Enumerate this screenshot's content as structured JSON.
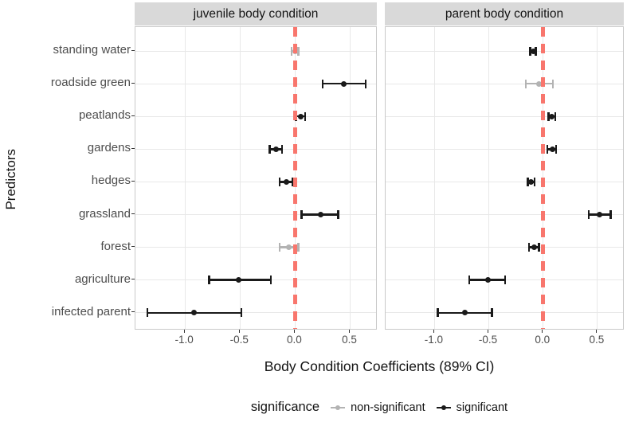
{
  "axes": {
    "x_title": "Body Condition Coefficients (89% CI)",
    "y_title": "Predictors"
  },
  "legend": {
    "title": "significance",
    "items": [
      {
        "label": "non-significant",
        "color": "#b3b3b3"
      },
      {
        "label": "significant",
        "color": "#1a1a1a"
      }
    ]
  },
  "style": {
    "strip_background": "#d9d9d9",
    "panel_border": "#c9c9c9",
    "grid_color": "#e8e8e8",
    "reference_line_color": "#f8766d"
  },
  "chart_data": {
    "type": "scatter",
    "variant": "pointrange-forest-plot",
    "orientation": "horizontal",
    "facets": [
      "juvenile body condition",
      "parent body condition"
    ],
    "categories": [
      "standing water",
      "roadside green",
      "peatlands",
      "gardens",
      "hedges",
      "grassland",
      "forest",
      "agriculture",
      "infected parent"
    ],
    "xlabel": "Body Condition Coefficients (89% CI)",
    "ylabel": "Predictors",
    "xlim": [
      -1.45,
      0.75
    ],
    "x_ticks": [
      -1.0,
      -0.5,
      0.0,
      0.5
    ],
    "x_tick_labels": [
      "-1.0",
      "-0.5",
      "0.0",
      "0.5"
    ],
    "grid": true,
    "legend_position": "bottom",
    "reference_line": {
      "x": 0.0,
      "style": "dashed",
      "color": "#f8766d"
    },
    "significance_colors": {
      "significant": "#1a1a1a",
      "non-significant": "#b3b3b3"
    },
    "panels": [
      {
        "facet": "juvenile body condition",
        "points": [
          {
            "predictor": "standing water",
            "estimate": 0.0,
            "ci_low": -0.04,
            "ci_high": 0.04,
            "significance": "non-significant"
          },
          {
            "predictor": "roadside green",
            "estimate": 0.44,
            "ci_low": 0.24,
            "ci_high": 0.65,
            "significance": "significant"
          },
          {
            "predictor": "peatlands",
            "estimate": 0.05,
            "ci_low": 0.0,
            "ci_high": 0.1,
            "significance": "significant"
          },
          {
            "predictor": "gardens",
            "estimate": -0.17,
            "ci_low": -0.24,
            "ci_high": -0.11,
            "significance": "significant"
          },
          {
            "predictor": "hedges",
            "estimate": -0.08,
            "ci_low": -0.15,
            "ci_high": -0.01,
            "significance": "significant"
          },
          {
            "predictor": "grassland",
            "estimate": 0.23,
            "ci_low": 0.05,
            "ci_high": 0.4,
            "significance": "significant"
          },
          {
            "predictor": "forest",
            "estimate": -0.06,
            "ci_low": -0.15,
            "ci_high": 0.04,
            "significance": "non-significant"
          },
          {
            "predictor": "agriculture",
            "estimate": -0.51,
            "ci_low": -0.79,
            "ci_high": -0.21,
            "significance": "significant"
          },
          {
            "predictor": "infected parent",
            "estimate": -0.92,
            "ci_low": -1.35,
            "ci_high": -0.48,
            "significance": "significant"
          }
        ]
      },
      {
        "facet": "parent body condition",
        "points": [
          {
            "predictor": "standing water",
            "estimate": -0.09,
            "ci_low": -0.13,
            "ci_high": -0.06,
            "significance": "significant"
          },
          {
            "predictor": "roadside green",
            "estimate": -0.04,
            "ci_low": -0.17,
            "ci_high": 0.1,
            "significance": "non-significant"
          },
          {
            "predictor": "peatlands",
            "estimate": 0.08,
            "ci_low": 0.04,
            "ci_high": 0.12,
            "significance": "significant"
          },
          {
            "predictor": "gardens",
            "estimate": 0.09,
            "ci_low": 0.03,
            "ci_high": 0.13,
            "significance": "significant"
          },
          {
            "predictor": "hedges",
            "estimate": -0.11,
            "ci_low": -0.15,
            "ci_high": -0.07,
            "significance": "significant"
          },
          {
            "predictor": "grassland",
            "estimate": 0.52,
            "ci_low": 0.41,
            "ci_high": 0.63,
            "significance": "significant"
          },
          {
            "predictor": "forest",
            "estimate": -0.08,
            "ci_low": -0.14,
            "ci_high": -0.03,
            "significance": "significant"
          },
          {
            "predictor": "agriculture",
            "estimate": -0.51,
            "ci_low": -0.69,
            "ci_high": -0.34,
            "significance": "significant"
          },
          {
            "predictor": "infected parent",
            "estimate": -0.72,
            "ci_low": -0.98,
            "ci_high": -0.46,
            "significance": "significant"
          }
        ]
      }
    ]
  }
}
